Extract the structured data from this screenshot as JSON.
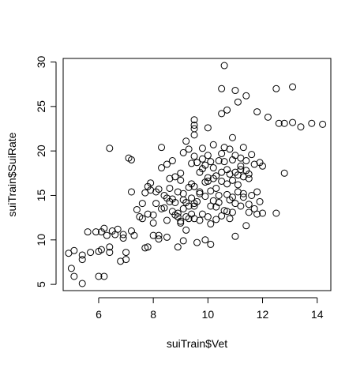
{
  "chart_data": {
    "type": "scatter",
    "xlabel": "suiTrain$Vet",
    "ylabel": "suiTrain$SuiRate",
    "xlim": [
      4.7,
      14.5
    ],
    "ylim": [
      4.3,
      30.4
    ],
    "x_ticks": [
      6,
      8,
      10,
      12,
      14
    ],
    "y_ticks": [
      5,
      10,
      15,
      20,
      25,
      30
    ],
    "box": true,
    "grid": false,
    "marker": "open-circle",
    "points": [
      [
        4.9,
        8.5
      ],
      [
        5.0,
        6.8
      ],
      [
        5.1,
        8.8
      ],
      [
        5.1,
        5.9
      ],
      [
        5.4,
        8.3
      ],
      [
        5.4,
        7.8
      ],
      [
        5.4,
        5.1
      ],
      [
        5.6,
        10.9
      ],
      [
        5.7,
        8.6
      ],
      [
        5.9,
        10.9
      ],
      [
        6.0,
        8.7
      ],
      [
        6.0,
        5.9
      ],
      [
        6.1,
        8.9
      ],
      [
        6.2,
        5.9
      ],
      [
        6.1,
        10.9
      ],
      [
        6.2,
        11.3
      ],
      [
        6.3,
        10.5
      ],
      [
        6.4,
        9.2
      ],
      [
        6.4,
        8.6
      ],
      [
        6.4,
        20.3
      ],
      [
        6.5,
        11.0
      ],
      [
        6.6,
        10.6
      ],
      [
        6.7,
        11.2
      ],
      [
        6.8,
        7.6
      ],
      [
        6.9,
        10.2
      ],
      [
        6.9,
        10.6
      ],
      [
        7.0,
        8.6
      ],
      [
        7.0,
        7.8
      ],
      [
        7.1,
        19.2
      ],
      [
        7.2,
        15.4
      ],
      [
        7.2,
        11.0
      ],
      [
        7.2,
        19.0
      ],
      [
        7.3,
        10.5
      ],
      [
        7.4,
        13.4
      ],
      [
        7.5,
        12.6
      ],
      [
        7.6,
        14.1
      ],
      [
        7.6,
        12.4
      ],
      [
        7.7,
        15.3
      ],
      [
        7.7,
        9.1
      ],
      [
        7.8,
        12.9
      ],
      [
        7.8,
        9.2
      ],
      [
        7.8,
        16.0
      ],
      [
        7.9,
        15.6
      ],
      [
        7.9,
        16.4
      ],
      [
        8.0,
        11.9
      ],
      [
        8.0,
        10.5
      ],
      [
        8.0,
        12.8
      ],
      [
        8.1,
        15.4
      ],
      [
        8.1,
        14.1
      ],
      [
        8.2,
        10.5
      ],
      [
        8.2,
        15.7
      ],
      [
        8.2,
        10.1
      ],
      [
        8.3,
        13.5
      ],
      [
        8.3,
        18.1
      ],
      [
        8.3,
        20.4
      ],
      [
        8.4,
        13.6
      ],
      [
        8.4,
        15.0
      ],
      [
        8.5,
        18.5
      ],
      [
        8.5,
        14.7
      ],
      [
        8.5,
        10.3
      ],
      [
        8.5,
        12.2
      ],
      [
        8.6,
        14.3
      ],
      [
        8.6,
        16.9
      ],
      [
        8.6,
        15.8
      ],
      [
        8.7,
        13.2
      ],
      [
        8.7,
        18.9
      ],
      [
        8.7,
        14.6
      ],
      [
        8.8,
        17.1
      ],
      [
        8.8,
        12.8
      ],
      [
        8.8,
        14.2
      ],
      [
        8.9,
        13.0
      ],
      [
        8.9,
        12.6
      ],
      [
        8.9,
        15.4
      ],
      [
        8.9,
        9.2
      ],
      [
        9.0,
        11.9
      ],
      [
        9.0,
        16.7
      ],
      [
        9.0,
        12.1
      ],
      [
        9.0,
        17.5
      ],
      [
        9.1,
        14.5
      ],
      [
        9.1,
        13.5
      ],
      [
        9.1,
        15.2
      ],
      [
        9.1,
        19.8
      ],
      [
        9.1,
        9.9
      ],
      [
        9.2,
        11.1
      ],
      [
        9.2,
        12.6
      ],
      [
        9.2,
        21.1
      ],
      [
        9.2,
        14.2
      ],
      [
        9.3,
        15.9
      ],
      [
        9.3,
        12.4
      ],
      [
        9.3,
        13.8
      ],
      [
        9.3,
        20.2
      ],
      [
        9.4,
        12.9
      ],
      [
        9.4,
        16.3
      ],
      [
        9.4,
        14.7
      ],
      [
        9.4,
        18.6
      ],
      [
        9.5,
        13.8
      ],
      [
        9.5,
        21.8
      ],
      [
        9.5,
        22.5
      ],
      [
        9.5,
        23.5
      ],
      [
        9.5,
        22.9
      ],
      [
        9.5,
        19.4
      ],
      [
        9.5,
        14.1
      ],
      [
        9.5,
        16.0
      ],
      [
        9.5,
        12.4
      ],
      [
        9.6,
        14.3
      ],
      [
        9.6,
        18.7
      ],
      [
        9.6,
        9.7
      ],
      [
        9.7,
        15.4
      ],
      [
        9.7,
        17.6
      ],
      [
        9.7,
        15.2
      ],
      [
        9.7,
        12.2
      ],
      [
        9.8,
        18.0
      ],
      [
        9.8,
        19.1
      ],
      [
        9.8,
        12.9
      ],
      [
        9.8,
        20.3
      ],
      [
        9.9,
        16.5
      ],
      [
        9.9,
        18.4
      ],
      [
        9.9,
        14.9
      ],
      [
        9.9,
        10.0
      ],
      [
        10.0,
        12.6
      ],
      [
        10.0,
        17.0
      ],
      [
        10.0,
        16.6
      ],
      [
        10.0,
        22.6
      ],
      [
        10.0,
        19.5
      ],
      [
        10.1,
        15.5
      ],
      [
        10.1,
        18.8
      ],
      [
        10.1,
        13.8
      ],
      [
        10.1,
        11.8
      ],
      [
        10.1,
        9.5
      ],
      [
        10.2,
        16.9
      ],
      [
        10.2,
        14.4
      ],
      [
        10.2,
        18.1
      ],
      [
        10.2,
        20.7
      ],
      [
        10.3,
        17.2
      ],
      [
        10.3,
        12.3
      ],
      [
        10.3,
        13.7
      ],
      [
        10.3,
        15.8
      ],
      [
        10.4,
        18.9
      ],
      [
        10.4,
        15.0
      ],
      [
        10.4,
        14.2
      ],
      [
        10.5,
        17.6
      ],
      [
        10.5,
        16.6
      ],
      [
        10.5,
        19.7
      ],
      [
        10.5,
        12.7
      ],
      [
        10.5,
        24.2
      ],
      [
        10.5,
        27.0
      ],
      [
        10.6,
        29.6
      ],
      [
        10.6,
        18.8
      ],
      [
        10.6,
        20.4
      ],
      [
        10.6,
        13.3
      ],
      [
        10.7,
        16.3
      ],
      [
        10.7,
        17.9
      ],
      [
        10.7,
        15.1
      ],
      [
        10.7,
        13.2
      ],
      [
        10.7,
        24.6
      ],
      [
        10.8,
        17.4
      ],
      [
        10.8,
        12.4
      ],
      [
        10.8,
        14.5
      ],
      [
        10.8,
        20.2
      ],
      [
        10.9,
        19.0
      ],
      [
        10.9,
        21.5
      ],
      [
        10.9,
        16.7
      ],
      [
        10.9,
        14.8
      ],
      [
        10.9,
        13.1
      ],
      [
        11.0,
        17.6
      ],
      [
        11.0,
        19.5
      ],
      [
        11.0,
        26.8
      ],
      [
        11.0,
        14.1
      ],
      [
        11.0,
        10.4
      ],
      [
        11.1,
        17.3
      ],
      [
        11.1,
        16.2
      ],
      [
        11.1,
        25.5
      ],
      [
        11.1,
        15.4
      ],
      [
        11.2,
        18.3
      ],
      [
        11.2,
        17.9
      ],
      [
        11.2,
        13.8
      ],
      [
        11.2,
        19.2
      ],
      [
        11.3,
        15.2
      ],
      [
        11.3,
        17.1
      ],
      [
        11.3,
        20.4
      ],
      [
        11.3,
        14.8
      ],
      [
        11.4,
        17.8
      ],
      [
        11.4,
        18.9
      ],
      [
        11.4,
        11.6
      ],
      [
        11.4,
        26.2
      ],
      [
        11.5,
        16.9
      ],
      [
        11.5,
        14.0
      ],
      [
        11.5,
        17.4
      ],
      [
        11.5,
        13.1
      ],
      [
        11.6,
        19.6
      ],
      [
        11.6,
        15.0
      ],
      [
        11.7,
        18.5
      ],
      [
        11.7,
        13.5
      ],
      [
        11.8,
        24.4
      ],
      [
        11.8,
        15.4
      ],
      [
        11.8,
        12.9
      ],
      [
        11.9,
        18.7
      ],
      [
        11.9,
        14.3
      ],
      [
        12.0,
        18.3
      ],
      [
        12.0,
        13.0
      ],
      [
        12.2,
        23.8
      ],
      [
        12.5,
        27.0
      ],
      [
        12.5,
        13.0
      ],
      [
        12.6,
        23.1
      ],
      [
        12.8,
        23.1
      ],
      [
        12.8,
        17.5
      ],
      [
        13.1,
        23.2
      ],
      [
        13.1,
        27.2
      ],
      [
        13.4,
        22.7
      ],
      [
        13.8,
        23.1
      ],
      [
        14.2,
        23.0
      ]
    ]
  }
}
